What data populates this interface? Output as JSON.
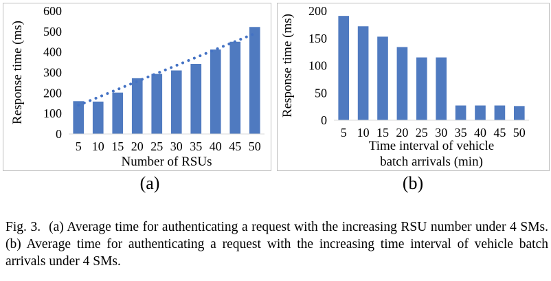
{
  "chart_data": [
    {
      "type": "bar",
      "subfigure_label": "(a)",
      "xlabel": "Number of RSUs",
      "ylabel": "Response time (ms)",
      "categories": [
        "5",
        "10",
        "15",
        "20",
        "25",
        "30",
        "35",
        "40",
        "45",
        "50"
      ],
      "values": [
        160,
        158,
        202,
        272,
        293,
        310,
        342,
        412,
        450,
        522
      ],
      "trendline": {
        "style": "dotted",
        "color": "#4472C4",
        "from": 140,
        "to": 490
      },
      "ylim": [
        0,
        600
      ],
      "yticks": [
        0,
        100,
        200,
        300,
        400,
        500,
        600
      ],
      "bar_color": "#4F7AC0",
      "grid": false
    },
    {
      "type": "bar",
      "subfigure_label": "(b)",
      "xlabel": "Time interval of vehicle batch arrivals (min)",
      "xlabel_lines": [
        "Time interval of vehicle",
        "batch arrivals (min)"
      ],
      "ylabel": "Response time (ms)",
      "categories": [
        "5",
        "10",
        "15",
        "20",
        "25",
        "30",
        "35",
        "40",
        "45",
        "50"
      ],
      "values": [
        191,
        172,
        153,
        134,
        115,
        115,
        27,
        27,
        27,
        26
      ],
      "ylim": [
        0,
        200
      ],
      "yticks": [
        0,
        50,
        100,
        150,
        200
      ],
      "bar_color": "#4F7AC0",
      "grid": false
    }
  ],
  "caption": {
    "label": "Fig. 3.",
    "text": "(a) Average time for authenticating a request with the increasing RSU number under 4 SMs. (b) Average time for authenticating a request with the increasing time interval of vehicle batch arrivals under 4 SMs."
  }
}
